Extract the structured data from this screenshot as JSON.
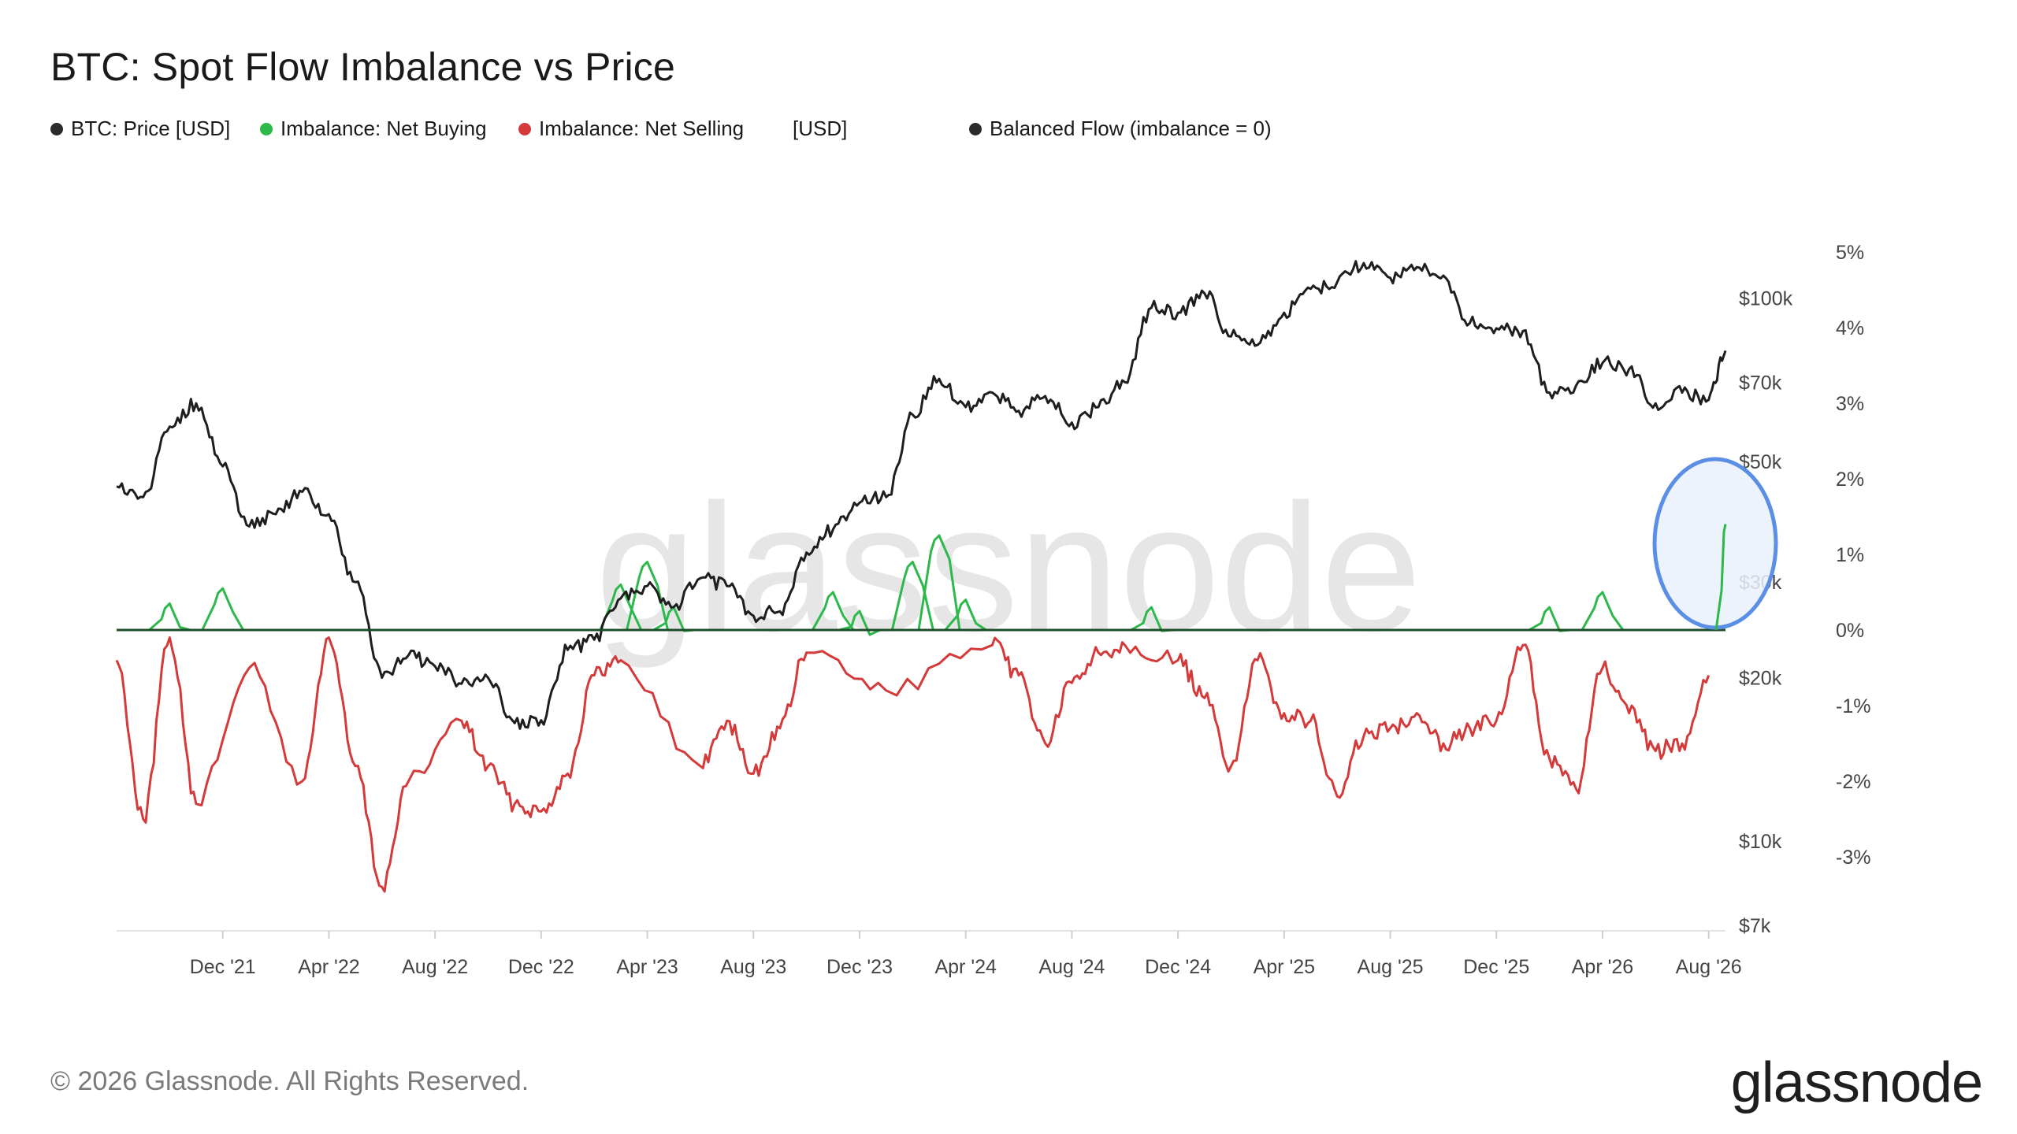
{
  "title": "BTC: Spot Flow Imbalance vs Price",
  "legend": [
    {
      "label": "BTC: Price [USD]",
      "color": "#2b2b2b"
    },
    {
      "label": "Imbalance: Net Buying",
      "color": "#2db84b"
    },
    {
      "label": "Imbalance: Net Selling",
      "color": "#d43a3a"
    },
    {
      "label": "[USD]",
      "color": ""
    },
    {
      "label": "Balanced Flow (imbalance = 0)",
      "color": "#2b2b2b"
    }
  ],
  "footer": {
    "copyright": "© 2026 Glassnode. All Rights Reserved.",
    "logo": "glassnode"
  },
  "watermark": "glassnode",
  "colors": {
    "price": "#1e1e1e",
    "buying": "#2db84b",
    "selling": "#d43a3a",
    "balanced": "#1f4d2a",
    "highlight_fill": "#eaf1fd",
    "highlight_stroke": "#5b8fe6",
    "grid_line": "#e3e3e3"
  },
  "chart_data": {
    "type": "line",
    "x_ticks": [
      "Dec '21",
      "Apr '22",
      "Aug '22",
      "Dec '22",
      "Apr '23",
      "Aug '23",
      "Dec '23",
      "Apr '24",
      "Aug '24",
      "Dec '24",
      "Apr '25",
      "Aug '25",
      "Dec '25",
      "Apr '26",
      "Aug '26"
    ],
    "x_range": [
      "2021-08",
      "2026-08"
    ],
    "y_left_axis": {
      "label": "[USD]",
      "scale": "log",
      "ticks": [
        "$7k",
        "$10k",
        "$20k",
        "$30k",
        "$50k",
        "$70k",
        "$100k"
      ],
      "tick_values": [
        7000,
        10000,
        20000,
        30000,
        50000,
        70000,
        100000
      ],
      "range": [
        7000,
        130000
      ]
    },
    "y_right_axis": {
      "scale": "linear",
      "ticks": [
        "5%",
        "4%",
        "3%",
        "2%",
        "1%",
        "0%",
        "-1%",
        "-2%",
        "-3%"
      ],
      "tick_values": [
        5,
        4,
        3,
        2,
        1,
        0,
        -1,
        -2,
        -3
      ],
      "range": [
        -3.9,
        5.2
      ]
    },
    "series": [
      {
        "name": "BTC: Price [USD]",
        "axis": "left",
        "points": [
          [
            "2021-08",
            45000
          ],
          [
            "2021-09",
            43000
          ],
          [
            "2021-10",
            58000
          ],
          [
            "2021-11",
            64000
          ],
          [
            "2021-12",
            49000
          ],
          [
            "2022-01",
            38000
          ],
          [
            "2022-02",
            40000
          ],
          [
            "2022-03",
            44000
          ],
          [
            "2022-04",
            40000
          ],
          [
            "2022-05",
            30000
          ],
          [
            "2022-06",
            20000
          ],
          [
            "2022-07",
            22000
          ],
          [
            "2022-08",
            21000
          ],
          [
            "2022-09",
            19500
          ],
          [
            "2022-10",
            20000
          ],
          [
            "2022-11",
            16500
          ],
          [
            "2022-12",
            16700
          ],
          [
            "2023-01",
            22500
          ],
          [
            "2023-02",
            23500
          ],
          [
            "2023-03",
            28000
          ],
          [
            "2023-04",
            29500
          ],
          [
            "2023-05",
            27000
          ],
          [
            "2023-06",
            30500
          ],
          [
            "2023-07",
            29500
          ],
          [
            "2023-08",
            26000
          ],
          [
            "2023-09",
            26500
          ],
          [
            "2023-10",
            34000
          ],
          [
            "2023-11",
            37500
          ],
          [
            "2023-12",
            42000
          ],
          [
            "2024-01",
            43000
          ],
          [
            "2024-02",
            61000
          ],
          [
            "2024-03",
            71000
          ],
          [
            "2024-04",
            63000
          ],
          [
            "2024-05",
            67000
          ],
          [
            "2024-06",
            62000
          ],
          [
            "2024-07",
            66000
          ],
          [
            "2024-08",
            59000
          ],
          [
            "2024-09",
            63000
          ],
          [
            "2024-10",
            70000
          ],
          [
            "2024-11",
            96000
          ],
          [
            "2024-12",
            94000
          ],
          [
            "2025-01",
            102000
          ],
          [
            "2025-02",
            85000
          ],
          [
            "2025-03",
            82000
          ],
          [
            "2025-04",
            94000
          ],
          [
            "2025-05",
            104000
          ],
          [
            "2025-06",
            107000
          ],
          [
            "2025-07",
            116000
          ],
          [
            "2025-08",
            109000
          ],
          [
            "2025-09",
            114000
          ],
          [
            "2025-10",
            110000
          ],
          [
            "2025-11",
            90000
          ],
          [
            "2025-12",
            88000
          ],
          [
            "2026-01",
            87000
          ],
          [
            "2026-02",
            67000
          ],
          [
            "2026-03",
            69000
          ],
          [
            "2026-04",
            76000
          ],
          [
            "2026-05",
            74000
          ],
          [
            "2026-06",
            64000
          ],
          [
            "2026-07",
            67000
          ],
          [
            "2026-08",
            65000
          ],
          [
            "2026-08-20",
            80000
          ]
        ]
      },
      {
        "name": "Imbalance: Net Buying",
        "axis": "right",
        "points": [
          [
            "2021-10",
            0.35
          ],
          [
            "2021-12",
            0.55
          ],
          [
            "2023-03",
            0.6
          ],
          [
            "2023-04",
            0.9
          ],
          [
            "2023-05",
            0.3
          ],
          [
            "2023-11",
            0.5
          ],
          [
            "2023-12",
            0.25
          ],
          [
            "2024-02",
            0.9
          ],
          [
            "2024-03",
            1.25
          ],
          [
            "2024-04",
            0.4
          ],
          [
            "2024-11",
            0.3
          ],
          [
            "2026-02",
            0.3
          ],
          [
            "2026-04",
            0.5
          ],
          [
            "2026-08-20",
            1.4
          ]
        ]
      },
      {
        "name": "Imbalance: Net Selling",
        "axis": "right",
        "points": [
          [
            "2021-08",
            -0.4
          ],
          [
            "2021-09",
            -2.5
          ],
          [
            "2021-10",
            -0.1
          ],
          [
            "2021-11",
            -2.3
          ],
          [
            "2022-01",
            -0.5
          ],
          [
            "2022-03",
            -2.0
          ],
          [
            "2022-04",
            -0.1
          ],
          [
            "2022-05",
            -1.8
          ],
          [
            "2022-06",
            -3.4
          ],
          [
            "2022-07",
            -2.0
          ],
          [
            "2022-09",
            -1.2
          ],
          [
            "2022-10",
            -1.8
          ],
          [
            "2022-11",
            -2.3
          ],
          [
            "2022-12",
            -2.4
          ],
          [
            "2023-01",
            -1.9
          ],
          [
            "2023-02",
            -0.6
          ],
          [
            "2023-03",
            -0.4
          ],
          [
            "2023-06",
            -1.8
          ],
          [
            "2023-07",
            -1.2
          ],
          [
            "2023-08",
            -1.9
          ],
          [
            "2023-09",
            -1.3
          ],
          [
            "2023-10",
            -0.3
          ],
          [
            "2024-01",
            -0.8
          ],
          [
            "2024-05",
            -0.2
          ],
          [
            "2024-06",
            -0.6
          ],
          [
            "2024-07",
            -1.5
          ],
          [
            "2024-08",
            -0.7
          ],
          [
            "2024-09",
            -0.3
          ],
          [
            "2024-10",
            -0.2
          ],
          [
            "2024-12",
            -0.4
          ],
          [
            "2025-01",
            -0.9
          ],
          [
            "2025-02",
            -1.8
          ],
          [
            "2025-03",
            -0.4
          ],
          [
            "2025-04",
            -1.1
          ],
          [
            "2025-05",
            -1.2
          ],
          [
            "2025-06",
            -2.2
          ],
          [
            "2025-07",
            -1.4
          ],
          [
            "2025-08",
            -1.3
          ],
          [
            "2025-09",
            -1.1
          ],
          [
            "2025-10",
            -1.5
          ],
          [
            "2025-11",
            -1.3
          ],
          [
            "2025-12",
            -1.2
          ],
          [
            "2026-01",
            -0.2
          ],
          [
            "2026-02",
            -1.7
          ],
          [
            "2026-03",
            -2.1
          ],
          [
            "2026-04",
            -0.5
          ],
          [
            "2026-05",
            -1.1
          ],
          [
            "2026-06",
            -1.6
          ],
          [
            "2026-07",
            -1.5
          ],
          [
            "2026-08",
            -0.6
          ]
        ]
      },
      {
        "name": "Balanced Flow (imbalance = 0)",
        "axis": "right",
        "points": [
          [
            "2021-08",
            0
          ],
          [
            "2026-08-20",
            0
          ]
        ]
      }
    ],
    "annotations": [
      {
        "type": "ellipse",
        "target": "latest Net Buying spike",
        "at": "2026-08"
      }
    ],
    "grid": false,
    "legend_position": "top-left"
  }
}
